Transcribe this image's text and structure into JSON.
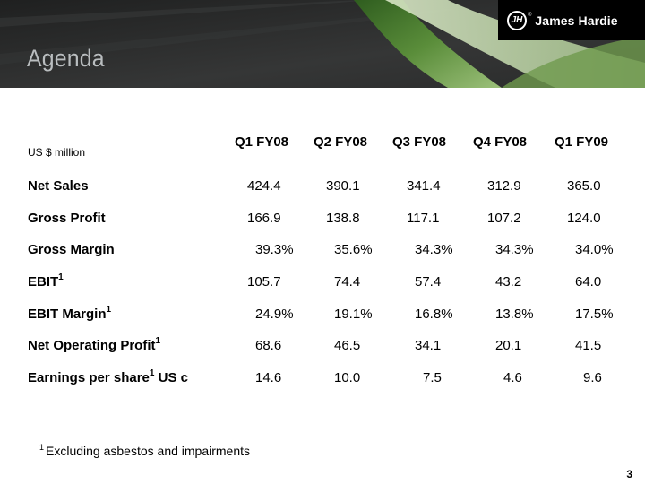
{
  "header": {
    "title": "Agenda",
    "logo_text": "James Hardie",
    "logo_mark": "JH",
    "registered_mark": "®"
  },
  "table": {
    "unit_label": "US $ million",
    "columns": [
      "Q1 FY08",
      "Q2 FY08",
      "Q3 FY08",
      "Q4 FY08",
      "Q1 FY09"
    ],
    "rows": [
      {
        "label": "Net Sales",
        "sup": "",
        "suffix": "",
        "values": [
          "424.4",
          "390.1",
          "341.4",
          "312.9",
          "365.0"
        ]
      },
      {
        "label": "Gross Profit",
        "sup": "",
        "suffix": "",
        "values": [
          "166.9",
          "138.8",
          "117.1",
          "107.2",
          "124.0"
        ]
      },
      {
        "label": "Gross Margin",
        "sup": "",
        "suffix": "",
        "values": [
          "39.3%",
          "35.6%",
          "34.3%",
          "34.3%",
          "34.0%"
        ]
      },
      {
        "label": "EBIT",
        "sup": "1",
        "suffix": "",
        "values": [
          "105.7",
          "74.4",
          "57.4",
          "43.2",
          "64.0"
        ]
      },
      {
        "label": "EBIT Margin",
        "sup": "1",
        "suffix": "",
        "values": [
          "24.9%",
          "19.1%",
          "16.8%",
          "13.8%",
          "17.5%"
        ]
      },
      {
        "label": "Net Operating Profit",
        "sup": "1",
        "suffix": "",
        "values": [
          "68.6",
          "46.5",
          "34.1",
          "20.1",
          "41.5"
        ]
      },
      {
        "label": "Earnings per share",
        "sup": "1",
        "suffix": " US c",
        "values": [
          "14.6",
          "10.0",
          "7.5",
          "4.6",
          "9.6"
        ]
      }
    ]
  },
  "footnote": {
    "marker": "1",
    "text": "Excluding asbestos and impairments"
  },
  "page_number": "3",
  "colors": {
    "banner": "#2e2f2f",
    "title": "#b9bdbf",
    "leaf_dark": "#4a7a2e",
    "leaf_light": "#b9d39a",
    "logo_bg": "#000000"
  }
}
